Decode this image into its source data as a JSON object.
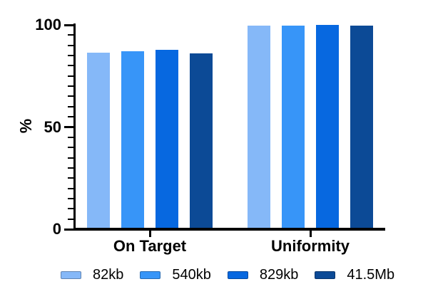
{
  "chart_data": {
    "type": "bar",
    "title": "",
    "ylabel": "%",
    "xlabel": "",
    "ylim": [
      0,
      100
    ],
    "yticks_major": [
      0,
      50,
      100
    ],
    "ytick_minor_step": 5,
    "grid": false,
    "legend_position": "bottom",
    "axis_color": "#000000",
    "text_color": "#000000",
    "categories": [
      "On Target",
      "Uniformity"
    ],
    "series": [
      {
        "name": "82kb",
        "color": "#85B8F8",
        "values": [
          86.3,
          99.6
        ]
      },
      {
        "name": "540kb",
        "color": "#3795F8",
        "values": [
          87.0,
          99.8
        ]
      },
      {
        "name": "829kb",
        "color": "#0768E0",
        "values": [
          87.7,
          100.0
        ]
      },
      {
        "name": "41.5Mb",
        "color": "#0C4A96",
        "values": [
          85.9,
          99.7
        ]
      }
    ]
  }
}
